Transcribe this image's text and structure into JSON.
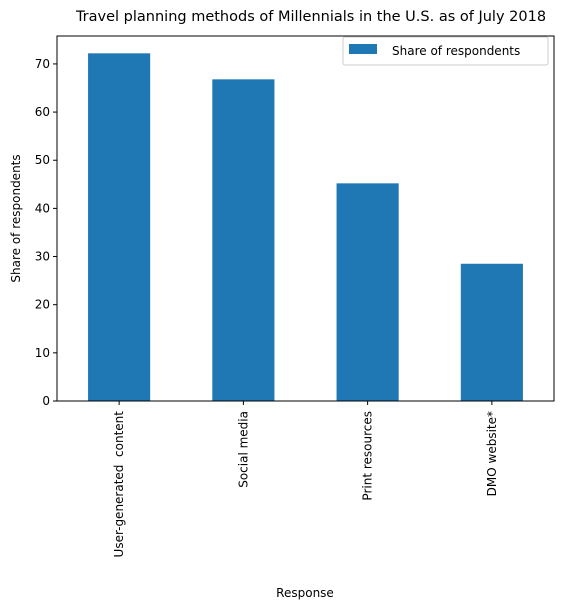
{
  "chart_data": {
    "type": "bar",
    "title": "Travel planning methods of Millennials in the U.S. as of July 2018",
    "xlabel": "Response",
    "ylabel": "Share of respondents",
    "categories": [
      "User-generated  content",
      "Social media",
      "Print resources",
      "DMO website*"
    ],
    "series": [
      {
        "name": "Share of respondents",
        "values": [
          72.2,
          66.8,
          45.2,
          28.5
        ],
        "color": "#1f77b4"
      }
    ],
    "ylim": [
      0,
      75.8
    ],
    "yticks": [
      0,
      10,
      20,
      30,
      40,
      50,
      60,
      70
    ],
    "grid": false,
    "legend_position": "top-right"
  }
}
